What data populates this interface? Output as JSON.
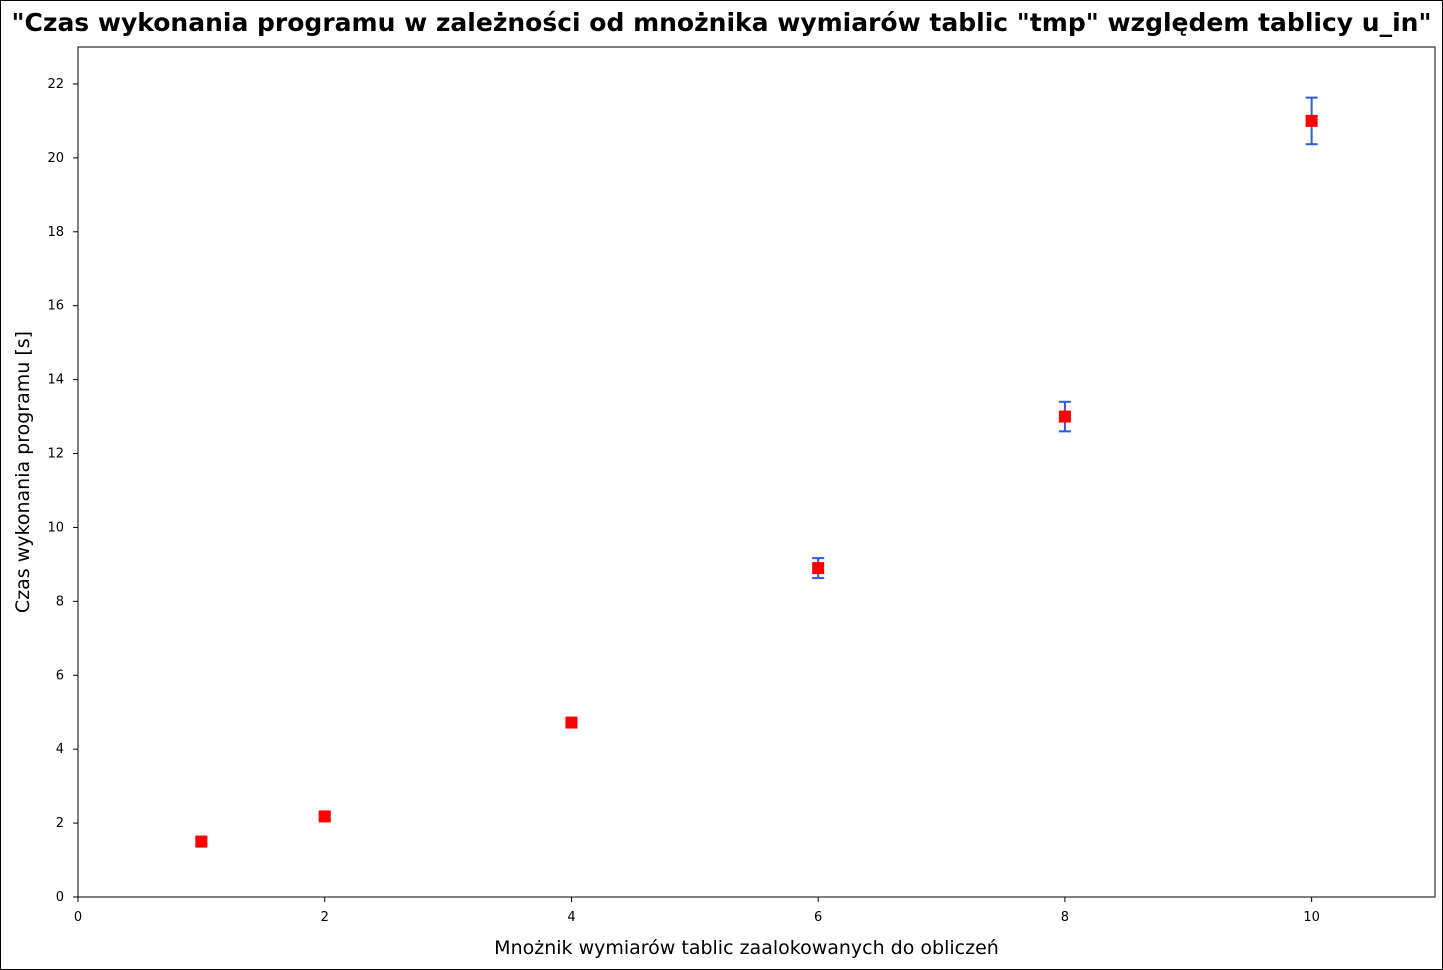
{
  "chart_data": {
    "type": "scatter",
    "title": "\"Czas wykonania programu w zależności od mnożnika wymiarów tablic \"tmp\" względem tablicy u_in\"",
    "xlabel": "Mnożnik wymiarów tablic zaalokowanych do obliczeń",
    "ylabel": "Czas wykonania programu [s]",
    "xlim": [
      0,
      11
    ],
    "ylim": [
      0,
      23
    ],
    "xticks": [
      0,
      2,
      4,
      6,
      8,
      10
    ],
    "yticks": [
      0,
      2,
      4,
      6,
      8,
      10,
      12,
      14,
      16,
      18,
      20,
      22
    ],
    "grid": false,
    "points": [
      {
        "x": 1,
        "y": 1.5,
        "err_low": 1.42,
        "err_high": 1.58
      },
      {
        "x": 2,
        "y": 2.18,
        "err_low": 2.1,
        "err_high": 2.26
      },
      {
        "x": 4,
        "y": 4.72,
        "err_low": 4.62,
        "err_high": 4.8
      },
      {
        "x": 6,
        "y": 8.9,
        "err_low": 8.63,
        "err_high": 9.17
      },
      {
        "x": 8,
        "y": 13.0,
        "err_low": 12.6,
        "err_high": 13.4
      },
      {
        "x": 10,
        "y": 21.0,
        "err_low": 20.37,
        "err_high": 21.63
      }
    ],
    "colors": {
      "marker": "#ff0000",
      "error_bar": "#2b5bdc",
      "axis": "#000000"
    }
  }
}
